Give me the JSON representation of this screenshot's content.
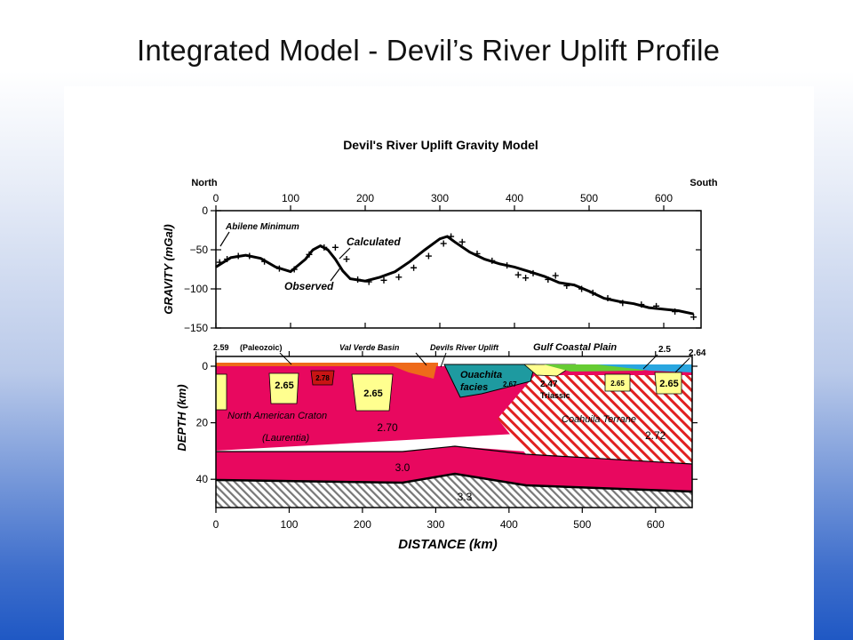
{
  "slide": {
    "title": "Integrated Model - Devil’s River Uplift Profile"
  },
  "figure": {
    "title": "Devil's River Uplift Gravity Model",
    "north_label": "North",
    "south_label": "South",
    "colors": {
      "craton": "#e8085f",
      "yellow_block": "#ffff8f",
      "red_block": "#c81414",
      "orange_basin": "#ee6a1a",
      "ouachita": "#1e9aa0",
      "green_coastal": "#66cc33",
      "blue_coastal": "#29a6e0",
      "coahuila_hatch": "#e02020"
    }
  },
  "chart_data": [
    {
      "type": "scatter",
      "name": "gravity",
      "ylabel": "GRAVITY (mGal)",
      "xlim": [
        0,
        650
      ],
      "ylim": [
        -150,
        0
      ],
      "xticks": [
        "0",
        "100",
        "200",
        "300",
        "400",
        "500",
        "600"
      ],
      "yticks": [
        "0",
        "−50",
        "−100",
        "−150"
      ],
      "annotations": [
        "Abilene Minimum",
        "Calculated",
        "Observed"
      ],
      "series": [
        {
          "name": "Calculated",
          "x": [
            0,
            20,
            40,
            60,
            80,
            100,
            120,
            130,
            140,
            150,
            160,
            170,
            180,
            200,
            220,
            240,
            260,
            280,
            300,
            310,
            320,
            340,
            360,
            380,
            400,
            420,
            440,
            460,
            480,
            500,
            520,
            540,
            560,
            580,
            600,
            620,
            640
          ],
          "y": [
            -72,
            -60,
            -57,
            -61,
            -72,
            -78,
            -62,
            -50,
            -45,
            -50,
            -62,
            -77,
            -87,
            -90,
            -85,
            -78,
            -65,
            -50,
            -36,
            -33,
            -40,
            -53,
            -62,
            -68,
            -72,
            -78,
            -84,
            -92,
            -95,
            -103,
            -112,
            -116,
            -119,
            -124,
            -126,
            -128,
            -132
          ]
        },
        {
          "name": "Observed",
          "x": [
            5,
            15,
            30,
            45,
            65,
            85,
            105,
            125,
            145,
            160,
            175,
            190,
            205,
            225,
            245,
            265,
            285,
            305,
            315,
            330,
            350,
            370,
            390,
            405,
            415,
            425,
            445,
            455,
            470,
            490,
            505,
            525,
            545,
            570,
            590,
            615,
            640
          ],
          "y": [
            -66,
            -62,
            -58,
            -58,
            -65,
            -74,
            -75,
            -56,
            -47,
            -47,
            -62,
            -88,
            -91,
            -89,
            -85,
            -73,
            -58,
            -42,
            -33,
            -40,
            -55,
            -64,
            -70,
            -82,
            -86,
            -80,
            -88,
            -83,
            -96,
            -100,
            -105,
            -112,
            -118,
            -120,
            -122,
            -129,
            -136
          ]
        }
      ]
    },
    {
      "type": "cross-section",
      "name": "density model",
      "ylabel": "DEPTH (km)",
      "xlabel": "DISTANCE (km)",
      "xlim": [
        0,
        650
      ],
      "ylim": [
        50,
        0
      ],
      "xticks": [
        "0",
        "100",
        "200",
        "300",
        "400",
        "500",
        "600"
      ],
      "yticks": [
        "0",
        "20",
        "40"
      ],
      "top_labels": [
        "2.59",
        "(Paleozoic)",
        "Val Verde Basin",
        "Devils River Uplift",
        "Gulf Coastal Plain",
        "2.5",
        "2.64"
      ],
      "bodies": [
        {
          "name": "North American Craton",
          "label": "North American Craton",
          "sublabel": "(Laurentia)",
          "density": "2.70"
        },
        {
          "name": "Lower crust",
          "density": "3.0"
        },
        {
          "name": "Mantle",
          "density": "3.3"
        },
        {
          "name": "Ouachita facies",
          "label": "Ouachita facies",
          "density": "2.67"
        },
        {
          "name": "Triassic",
          "label": "Triassic",
          "density": "2.47"
        },
        {
          "name": "Coahuila Terrane",
          "label": "Coahuila Terrane",
          "density": "2.72"
        },
        {
          "name": "Yellow block A",
          "density": "2.65"
        },
        {
          "name": "Red block",
          "density": "2.78"
        },
        {
          "name": "Yellow block B",
          "density": "2.65"
        },
        {
          "name": "Yellow block C",
          "density": "2.65"
        },
        {
          "name": "Yellow block D",
          "density": "2.65"
        }
      ]
    }
  ]
}
